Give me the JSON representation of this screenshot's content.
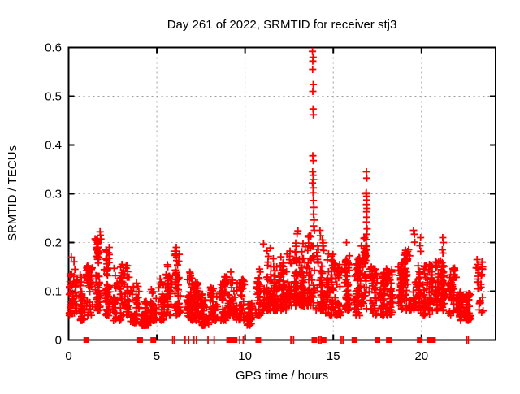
{
  "title": "Day 261 of 2022, SRMTID for receiver stj3",
  "chart_data": {
    "type": "scatter",
    "title": "Day 261 of 2022, SRMTID for receiver stj3",
    "xlabel": "GPS time / hours",
    "ylabel": "SRMTID / TECUs",
    "series_name": "SRMTID",
    "xlim": [
      0,
      24.2
    ],
    "ylim": [
      0,
      0.6
    ],
    "xtick_labels": [
      "0",
      "5",
      "10",
      "15",
      "20"
    ],
    "xtick_values": [
      0,
      5,
      10,
      15,
      20
    ],
    "ytick_labels": [
      "0",
      "0.1",
      "0.2",
      "0.3",
      "0.4",
      "0.5",
      "0.6"
    ],
    "ytick_values": [
      0,
      0.1,
      0.2,
      0.3,
      0.4,
      0.5,
      0.6
    ],
    "grid": true,
    "legend": "none",
    "marker": "plus",
    "marker_color": "#ff0000",
    "grid_color": "#9e9e9e",
    "frame_color": "#000000",
    "background": "#ffffff",
    "seed": 1337,
    "bin_width": 0.5,
    "density_bins": [
      [
        0.0,
        55,
        0.05,
        0.165
      ],
      [
        0.5,
        50,
        0.04,
        0.135
      ],
      [
        1.0,
        50,
        0.05,
        0.155
      ],
      [
        1.5,
        65,
        0.06,
        0.21
      ],
      [
        2.0,
        60,
        0.05,
        0.185
      ],
      [
        2.5,
        50,
        0.04,
        0.15
      ],
      [
        3.0,
        50,
        0.05,
        0.155
      ],
      [
        3.5,
        45,
        0.035,
        0.12
      ],
      [
        4.0,
        60,
        0.03,
        0.08
      ],
      [
        4.5,
        40,
        0.04,
        0.105
      ],
      [
        5.0,
        40,
        0.04,
        0.13
      ],
      [
        5.5,
        45,
        0.05,
        0.155
      ],
      [
        6.0,
        50,
        0.05,
        0.185
      ],
      [
        6.5,
        50,
        0.04,
        0.14
      ],
      [
        7.0,
        55,
        0.04,
        0.12
      ],
      [
        7.5,
        55,
        0.03,
        0.095
      ],
      [
        8.0,
        50,
        0.04,
        0.12
      ],
      [
        8.5,
        45,
        0.04,
        0.13
      ],
      [
        9.0,
        45,
        0.05,
        0.14
      ],
      [
        9.5,
        45,
        0.04,
        0.125
      ],
      [
        10.0,
        40,
        0.03,
        0.085
      ],
      [
        10.5,
        45,
        0.05,
        0.15
      ],
      [
        11.0,
        55,
        0.06,
        0.19
      ],
      [
        11.5,
        55,
        0.06,
        0.17
      ],
      [
        12.0,
        60,
        0.06,
        0.18
      ],
      [
        12.5,
        65,
        0.07,
        0.2
      ],
      [
        13.0,
        65,
        0.07,
        0.215
      ],
      [
        13.5,
        55,
        0.07,
        0.22
      ],
      [
        14.0,
        55,
        0.06,
        0.21
      ],
      [
        14.5,
        50,
        0.05,
        0.18
      ],
      [
        15.0,
        50,
        0.05,
        0.16
      ],
      [
        15.5,
        55,
        0.06,
        0.195
      ],
      [
        16.0,
        50,
        0.05,
        0.17
      ],
      [
        16.5,
        55,
        0.06,
        0.21
      ],
      [
        17.0,
        50,
        0.05,
        0.15
      ],
      [
        17.5,
        45,
        0.05,
        0.14
      ],
      [
        18.0,
        50,
        0.05,
        0.15
      ],
      [
        18.5,
        50,
        0.06,
        0.16
      ],
      [
        19.0,
        55,
        0.06,
        0.19
      ],
      [
        19.5,
        55,
        0.06,
        0.21
      ],
      [
        20.0,
        50,
        0.05,
        0.16
      ],
      [
        20.5,
        50,
        0.06,
        0.17
      ],
      [
        21.0,
        55,
        0.06,
        0.2
      ],
      [
        21.5,
        50,
        0.05,
        0.15
      ],
      [
        22.0,
        60,
        0.04,
        0.105
      ],
      [
        22.5,
        50,
        0.04,
        0.095
      ],
      [
        23.0,
        25,
        0.05,
        0.16
      ]
    ],
    "spike_points": [
      [
        13.82,
        0.592
      ],
      [
        13.85,
        0.58
      ],
      [
        13.84,
        0.572
      ],
      [
        13.83,
        0.555
      ],
      [
        13.86,
        0.524
      ],
      [
        13.84,
        0.51
      ],
      [
        13.85,
        0.474
      ],
      [
        13.87,
        0.462
      ],
      [
        13.84,
        0.378
      ],
      [
        13.86,
        0.368
      ],
      [
        13.83,
        0.345
      ],
      [
        13.85,
        0.338
      ],
      [
        13.88,
        0.329
      ],
      [
        13.82,
        0.322
      ],
      [
        13.86,
        0.312
      ],
      [
        13.85,
        0.302
      ],
      [
        13.87,
        0.286
      ],
      [
        13.9,
        0.272
      ],
      [
        13.88,
        0.258
      ],
      [
        13.91,
        0.246
      ],
      [
        13.89,
        0.234
      ],
      [
        13.93,
        0.225
      ],
      [
        16.88,
        0.345
      ],
      [
        16.9,
        0.332
      ],
      [
        16.86,
        0.3
      ],
      [
        16.87,
        0.302
      ],
      [
        16.89,
        0.295
      ],
      [
        16.9,
        0.287
      ],
      [
        16.88,
        0.278
      ],
      [
        16.91,
        0.27
      ],
      [
        16.89,
        0.263
      ],
      [
        16.9,
        0.252
      ],
      [
        16.88,
        0.242
      ],
      [
        16.92,
        0.228
      ],
      [
        16.9,
        0.217
      ],
      [
        16.87,
        0.206
      ]
    ],
    "high_points": [
      [
        0.15,
        0.17
      ],
      [
        1.78,
        0.222
      ],
      [
        1.8,
        0.215
      ],
      [
        1.83,
        0.207
      ],
      [
        2.3,
        0.19
      ],
      [
        6.1,
        0.19
      ],
      [
        11.05,
        0.197
      ],
      [
        12.95,
        0.218
      ],
      [
        13.0,
        0.224
      ],
      [
        14.25,
        0.225
      ],
      [
        14.27,
        0.214
      ],
      [
        15.75,
        0.2
      ],
      [
        19.55,
        0.225
      ],
      [
        19.6,
        0.217
      ],
      [
        19.95,
        0.21
      ],
      [
        21.2,
        0.21
      ],
      [
        21.25,
        0.2
      ],
      [
        23.1,
        0.148
      ],
      [
        23.15,
        0.165
      ],
      [
        23.18,
        0.155
      ],
      [
        23.2,
        0.125
      ]
    ],
    "zero_markers": {
      "squares_hours": [
        1.0,
        4.05,
        4.8,
        9.1,
        9.4,
        10.75,
        13.93,
        14.45,
        16.2,
        17.5,
        18.15,
        19.9,
        20.45,
        20.65
      ],
      "tick_hours": [
        5.9,
        6.0,
        6.6,
        6.8,
        7.1,
        7.25,
        7.9,
        8.25,
        9.7,
        9.9,
        12.6,
        12.75,
        14.2,
        14.3,
        15.45,
        15.55,
        22.55,
        22.65
      ]
    }
  }
}
